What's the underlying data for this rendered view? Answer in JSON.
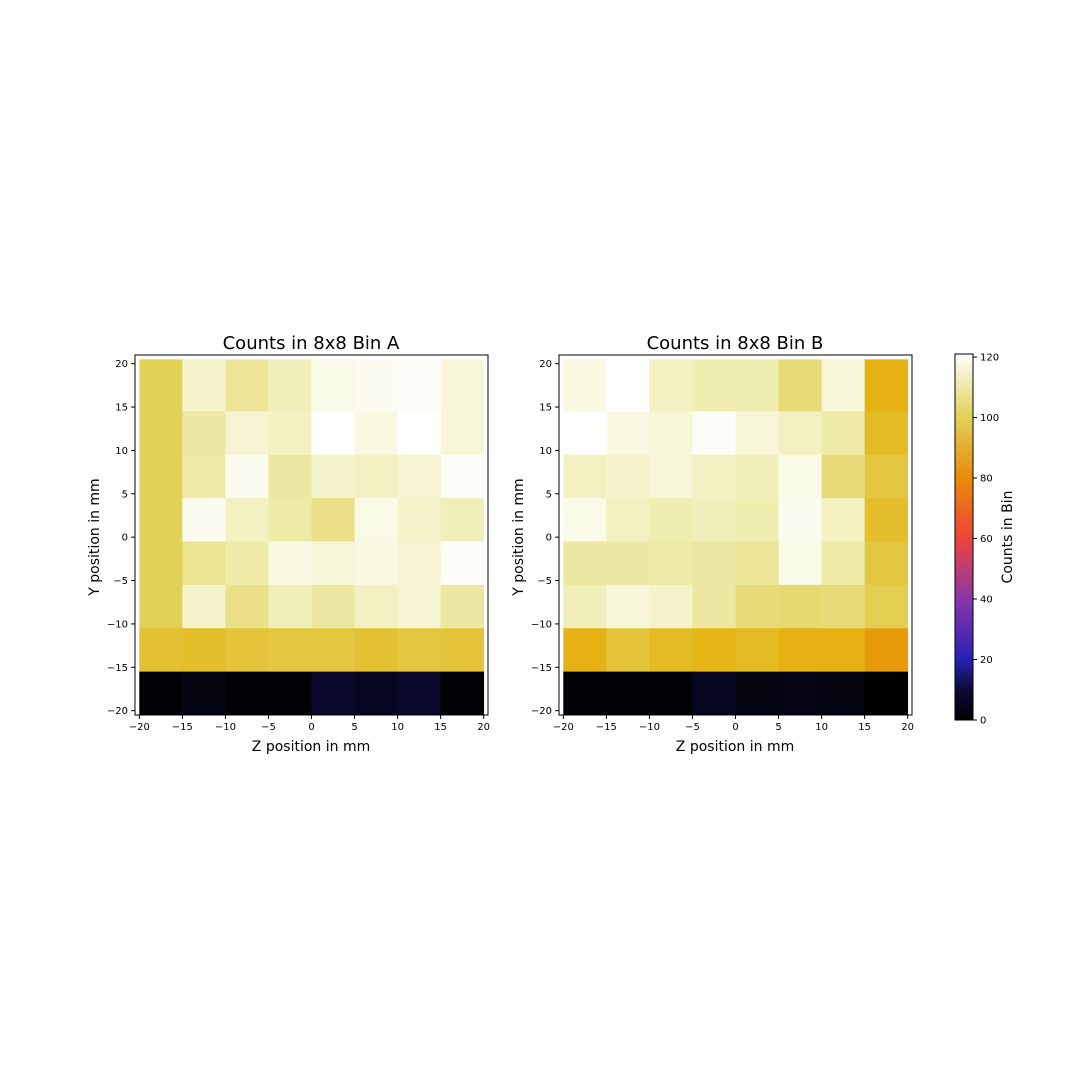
{
  "chart_data": [
    {
      "type": "heatmap",
      "title": "Counts in 8x8 Bin A",
      "xlabel": "Z position in mm",
      "ylabel": "Y position in mm",
      "xlim": [
        -20.5,
        20.5
      ],
      "ylim": [
        -20.5,
        21
      ],
      "x_ticks": [
        -20,
        -15,
        -10,
        -5,
        0,
        5,
        10,
        15,
        20
      ],
      "y_ticks": [
        -20,
        -15,
        -10,
        -5,
        0,
        5,
        10,
        15,
        20
      ],
      "x_edges": [
        -20,
        -15,
        -10,
        -5,
        0,
        5,
        10,
        15,
        20
      ],
      "y_edges": [
        -20.5,
        -15.5,
        -10.5,
        -5.5,
        -0.5,
        4.5,
        9.5,
        14.5,
        20.5
      ],
      "values_top_to_bottom": [
        [
          100,
          114,
          108,
          112,
          118,
          119,
          120,
          116
        ],
        [
          100,
          109,
          115,
          113,
          121,
          117,
          122,
          116
        ],
        [
          100,
          110,
          119,
          109,
          114,
          113,
          115,
          120
        ],
        [
          100,
          119,
          113,
          110,
          106,
          118,
          114,
          112
        ],
        [
          100,
          107,
          110,
          117,
          116,
          117,
          115,
          120
        ],
        [
          100,
          114,
          106,
          112,
          109,
          113,
          115,
          109
        ],
        [
          95,
          94,
          96,
          97,
          97,
          95,
          97,
          96
        ],
        [
          1,
          3,
          1,
          1,
          8,
          6,
          8,
          1
        ]
      ]
    },
    {
      "type": "heatmap",
      "title": "Counts in 8x8 Bin B",
      "xlabel": "Z position in mm",
      "ylabel": "Y position in mm",
      "xlim": [
        -20.5,
        20.5
      ],
      "ylim": [
        -20.5,
        21
      ],
      "x_ticks": [
        -20,
        -15,
        -10,
        -5,
        0,
        5,
        10,
        15,
        20
      ],
      "y_ticks": [
        -20,
        -15,
        -10,
        -5,
        0,
        5,
        10,
        15,
        20
      ],
      "x_edges": [
        -20,
        -15,
        -10,
        -5,
        0,
        5,
        10,
        15,
        20
      ],
      "y_edges": [
        -20.5,
        -15.5,
        -10.5,
        -5.5,
        -0.5,
        4.5,
        9.5,
        14.5,
        20.5
      ],
      "values_top_to_bottom": [
        [
          117,
          122,
          113,
          111,
          111,
          104,
          116,
          90
        ],
        [
          122,
          117,
          116,
          120,
          116,
          113,
          110,
          93
        ],
        [
          113,
          114,
          116,
          113,
          112,
          118,
          104,
          97
        ],
        [
          118,
          113,
          111,
          112,
          111,
          119,
          113,
          94
        ],
        [
          109,
          109,
          110,
          109,
          108,
          118,
          110,
          97
        ],
        [
          112,
          116,
          114,
          109,
          104,
          103,
          104,
          99
        ],
        [
          90,
          96,
          93,
          91,
          93,
          90,
          90,
          84
        ],
        [
          1,
          1,
          1,
          6,
          3,
          4,
          3,
          0
        ]
      ]
    }
  ],
  "colorbar": {
    "label": "Counts in Bin",
    "vmin": 0,
    "vmax": 121,
    "ticks": [
      0,
      20,
      40,
      60,
      80,
      100,
      120
    ],
    "colormap": "gnuplot2-like"
  }
}
